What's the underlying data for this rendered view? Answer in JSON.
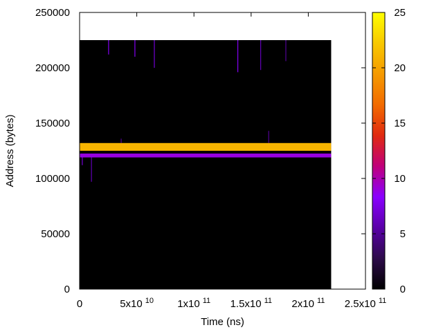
{
  "chart_data": {
    "type": "heatmap",
    "title": "",
    "xlabel": "Time (ns)",
    "ylabel": "Address (bytes)",
    "xlim": [
      0,
      250000000000
    ],
    "ylim": [
      0,
      250000
    ],
    "x_ticks": [
      {
        "value": 0,
        "mantissa": "0",
        "exponent": ""
      },
      {
        "value": 50000000000,
        "mantissa": "5x10",
        "exponent": "10"
      },
      {
        "value": 100000000000,
        "mantissa": "1x10",
        "exponent": "11"
      },
      {
        "value": 150000000000,
        "mantissa": "1.5x10",
        "exponent": "11"
      },
      {
        "value": 200000000000,
        "mantissa": "2x10",
        "exponent": "11"
      },
      {
        "value": 250000000000,
        "mantissa": "2.5x10",
        "exponent": "11"
      }
    ],
    "y_ticks": [
      "0",
      "50000",
      "100000",
      "150000",
      "200000",
      "250000"
    ],
    "y_tick_values": [
      0,
      50000,
      100000,
      150000,
      200000,
      250000
    ],
    "colorbar": {
      "range": [
        0,
        25
      ],
      "ticks": [
        "0",
        "5",
        "10",
        "15",
        "20",
        "25"
      ],
      "tick_values": [
        0,
        5,
        10,
        15,
        20,
        25
      ],
      "palette": [
        "#000000",
        "#2d0b4a",
        "#5a00a8",
        "#8a00ff",
        "#c0007a",
        "#e02a10",
        "#f26b00",
        "#f59a00",
        "#f8c800",
        "#ffff00"
      ]
    },
    "data_region": {
      "x": [
        0,
        220000000000
      ],
      "y": [
        0,
        225000
      ],
      "background_value": 0
    },
    "bands": [
      {
        "name": "hot",
        "x": [
          0,
          220000000000
        ],
        "y": [
          125000,
          132000
        ],
        "value": 21
      },
      {
        "name": "warm",
        "x": [
          0,
          220000000000
        ],
        "y": [
          119000,
          122500
        ],
        "value": 9
      }
    ],
    "spikes": [
      {
        "x": 10000000000,
        "y": [
          97000,
          122000
        ],
        "value": 6
      },
      {
        "x": 2000000000,
        "y": [
          112000,
          122000
        ],
        "value": 7
      },
      {
        "x": 25000000000,
        "y": [
          212000,
          225000
        ],
        "value": 8
      },
      {
        "x": 48000000000,
        "y": [
          210000,
          225000
        ],
        "value": 8
      },
      {
        "x": 65000000000,
        "y": [
          200000,
          225000
        ],
        "value": 7
      },
      {
        "x": 138000000000,
        "y": [
          196000,
          225000
        ],
        "value": 8
      },
      {
        "x": 158000000000,
        "y": [
          198000,
          225000
        ],
        "value": 6
      },
      {
        "x": 180000000000,
        "y": [
          206000,
          225000
        ],
        "value": 5
      },
      {
        "x": 165000000000,
        "y": [
          132000,
          143000
        ],
        "value": 5
      },
      {
        "x": 36000000000,
        "y": [
          132000,
          136000
        ],
        "value": 5
      }
    ]
  }
}
